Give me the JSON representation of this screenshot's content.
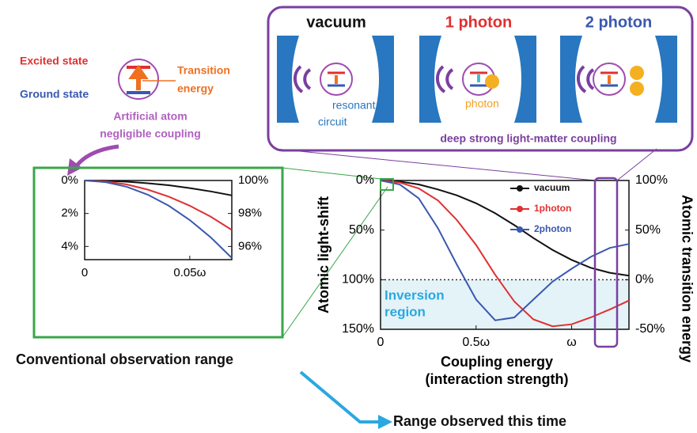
{
  "labels": {
    "excited_state": "Excited state",
    "ground_state": "Ground state",
    "transition_energy": [
      "Transition",
      "energy"
    ],
    "artificial_atom": [
      "Artificial atom",
      "negligible coupling"
    ],
    "panels": [
      "vacuum",
      "1 photon",
      "2 photon"
    ],
    "resonant_circuit": [
      "resonant",
      "circuit"
    ],
    "photon": "photon",
    "deep_strong": "deep strong light-matter coupling",
    "conventional": "Conventional observation range",
    "observed": "Range observed this time"
  },
  "chart_data": [
    {
      "type": "line",
      "x": [
        0,
        0.01,
        0.02,
        0.03,
        0.04,
        0.05,
        0.06,
        0.07
      ],
      "xlim": [
        0,
        0.07
      ],
      "xticks": [
        0,
        {
          "value": 0.05,
          "label": "0.05ω"
        }
      ],
      "ylim": [
        4.8,
        0
      ],
      "yticks": [
        {
          "value": 0,
          "label": "0%"
        },
        {
          "value": 2,
          "label": "2%"
        },
        {
          "value": 4,
          "label": "4%"
        }
      ],
      "y2lim": [
        95.2,
        100
      ],
      "y2ticks": [
        {
          "value": 100,
          "label": "100%"
        },
        {
          "value": 98,
          "label": "98%"
        },
        {
          "value": 96,
          "label": "96%"
        }
      ],
      "series": [
        {
          "color": "#111111",
          "values": [
            0,
            0.02,
            0.07,
            0.17,
            0.29,
            0.46,
            0.66,
            0.9
          ]
        },
        {
          "color": "#e03030",
          "values": [
            0,
            0.06,
            0.24,
            0.55,
            0.98,
            1.53,
            2.2,
            3.0
          ]
        },
        {
          "color": "#3a58b0",
          "values": [
            0,
            0.1,
            0.38,
            0.86,
            1.53,
            2.4,
            3.45,
            4.7
          ]
        }
      ]
    },
    {
      "type": "line",
      "x": [
        0,
        0.1,
        0.2,
        0.3,
        0.4,
        0.5,
        0.6,
        0.7,
        0.8,
        0.9,
        1.0,
        1.1,
        1.2,
        1.3
      ],
      "xlim": [
        0,
        1.3
      ],
      "xticks": [
        0,
        {
          "value": 0.5,
          "label": "0.5ω"
        },
        {
          "value": 1,
          "label": "ω"
        }
      ],
      "xlabel": [
        "Coupling energy",
        "(interaction strength)"
      ],
      "ylabel": "Atomic light-shift",
      "y2label": "Atomic transition energy",
      "ylim": [
        150,
        0
      ],
      "yticks": [
        {
          "value": 0,
          "label": "0%"
        },
        {
          "value": 50,
          "label": "50%"
        },
        {
          "value": 100,
          "label": "100%"
        },
        {
          "value": 150,
          "label": "150%"
        }
      ],
      "y2lim": [
        -50,
        100
      ],
      "y2ticks": [
        {
          "value": 100,
          "label": "100%"
        },
        {
          "value": 50,
          "label": "50%"
        },
        {
          "value": 0,
          "label": "0%"
        },
        {
          "value": -50,
          "label": "-50%"
        }
      ],
      "reference_line": 100,
      "annotation": [
        "Inversion",
        "region"
      ],
      "legend": "upper right",
      "series": [
        {
          "name": "vacuum",
          "color": "#111111",
          "values": [
            0,
            1,
            4,
            9,
            15,
            23,
            33,
            45,
            58,
            70,
            80,
            88,
            93,
            96
          ]
        },
        {
          "name": "1photon",
          "color": "#e03030",
          "values": [
            0,
            2,
            8,
            20,
            40,
            65,
            95,
            122,
            140,
            147,
            145,
            138,
            130,
            121
          ]
        },
        {
          "name": "2photon",
          "color": "#3a58b0",
          "values": [
            0,
            4,
            18,
            48,
            85,
            120,
            141,
            138,
            120,
            102,
            89,
            77,
            68,
            64
          ]
        }
      ]
    }
  ]
}
